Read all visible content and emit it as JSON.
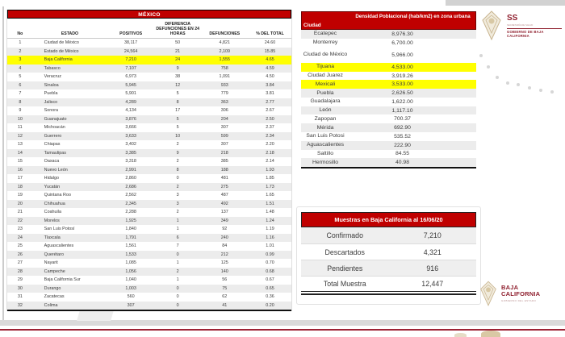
{
  "mexico_table": {
    "title": "MÉXICO",
    "columns": {
      "no": "No",
      "estado": "ESTADO",
      "positivos": "POSITIVOS",
      "dif": "DIFERENCIA DEFUNCIONES EN 24 HORAS",
      "defunciones": "DEFUNCIONES",
      "pct": "% DEL TOTAL"
    },
    "rows": [
      {
        "no": "1",
        "estado": "Ciudad de México",
        "positivos": "38,117",
        "dif": "50",
        "defunciones": "4,821",
        "pct": "24.60",
        "highlight": false
      },
      {
        "no": "2",
        "estado": "Estado de México",
        "positivos": "24,564",
        "dif": "21",
        "defunciones": "2,109",
        "pct": "15.85",
        "highlight": false
      },
      {
        "no": "3",
        "estado": "Baja California",
        "positivos": "7,210",
        "dif": "24",
        "defunciones": "1,555",
        "pct": "4.65",
        "highlight": true
      },
      {
        "no": "4",
        "estado": "Tabasco",
        "positivos": "7,107",
        "dif": "9",
        "defunciones": "758",
        "pct": "4.59",
        "highlight": false
      },
      {
        "no": "5",
        "estado": "Veracruz",
        "positivos": "6,973",
        "dif": "38",
        "defunciones": "1,091",
        "pct": "4.50",
        "highlight": false
      },
      {
        "no": "6",
        "estado": "Sinaloa",
        "positivos": "5,945",
        "dif": "12",
        "defunciones": "933",
        "pct": "3.84",
        "highlight": false
      },
      {
        "no": "7",
        "estado": "Puebla",
        "positivos": "5,901",
        "dif": "5",
        "defunciones": "779",
        "pct": "3.81",
        "highlight": false
      },
      {
        "no": "8",
        "estado": "Jalisco",
        "positivos": "4,289",
        "dif": "8",
        "defunciones": "363",
        "pct": "2.77",
        "highlight": false
      },
      {
        "no": "9",
        "estado": "Sonora",
        "positivos": "4,134",
        "dif": "17",
        "defunciones": "306",
        "pct": "2.67",
        "highlight": false
      },
      {
        "no": "10",
        "estado": "Guanajuato",
        "positivos": "3,876",
        "dif": "5",
        "defunciones": "204",
        "pct": "2.50",
        "highlight": false
      },
      {
        "no": "11",
        "estado": "Michoacán",
        "positivos": "3,666",
        "dif": "5",
        "defunciones": "307",
        "pct": "2.37",
        "highlight": false
      },
      {
        "no": "12",
        "estado": "Guerrero",
        "positivos": "3,633",
        "dif": "10",
        "defunciones": "599",
        "pct": "2.34",
        "highlight": false
      },
      {
        "no": "13",
        "estado": "Chiapas",
        "positivos": "3,402",
        "dif": "2",
        "defunciones": "307",
        "pct": "2.20",
        "highlight": false
      },
      {
        "no": "14",
        "estado": "Tamaulipas",
        "positivos": "3,385",
        "dif": "9",
        "defunciones": "218",
        "pct": "2.18",
        "highlight": false
      },
      {
        "no": "15",
        "estado": "Oaxaca",
        "positivos": "3,318",
        "dif": "2",
        "defunciones": "385",
        "pct": "2.14",
        "highlight": false
      },
      {
        "no": "16",
        "estado": "Nuevo León",
        "positivos": "2,991",
        "dif": "8",
        "defunciones": "188",
        "pct": "1.93",
        "highlight": false
      },
      {
        "no": "17",
        "estado": "Hidalgo",
        "positivos": "2,860",
        "dif": "0",
        "defunciones": "481",
        "pct": "1.85",
        "highlight": false
      },
      {
        "no": "18",
        "estado": "Yucatán",
        "positivos": "2,686",
        "dif": "2",
        "defunciones": "275",
        "pct": "1.73",
        "highlight": false
      },
      {
        "no": "19",
        "estado": "Quintana Roo",
        "positivos": "2,562",
        "dif": "3",
        "defunciones": "487",
        "pct": "1.65",
        "highlight": false
      },
      {
        "no": "20",
        "estado": "Chihuahua",
        "positivos": "2,345",
        "dif": "3",
        "defunciones": "492",
        "pct": "1.51",
        "highlight": false
      },
      {
        "no": "21",
        "estado": "Coahuila",
        "positivos": "2,288",
        "dif": "2",
        "defunciones": "137",
        "pct": "1.48",
        "highlight": false
      },
      {
        "no": "22",
        "estado": "Morelos",
        "positivos": "1,925",
        "dif": "1",
        "defunciones": "349",
        "pct": "1.24",
        "highlight": false
      },
      {
        "no": "23",
        "estado": "San Luis Potosí",
        "positivos": "1,840",
        "dif": "1",
        "defunciones": "92",
        "pct": "1.19",
        "highlight": false
      },
      {
        "no": "24",
        "estado": "Tlaxcala",
        "positivos": "1,791",
        "dif": "6",
        "defunciones": "240",
        "pct": "1.16",
        "highlight": false
      },
      {
        "no": "25",
        "estado": "Aguascalientes",
        "positivos": "1,561",
        "dif": "7",
        "defunciones": "84",
        "pct": "1.01",
        "highlight": false
      },
      {
        "no": "26",
        "estado": "Querétaro",
        "positivos": "1,533",
        "dif": "0",
        "defunciones": "212",
        "pct": "0.99",
        "highlight": false
      },
      {
        "no": "27",
        "estado": "Nayarit",
        "positivos": "1,085",
        "dif": "1",
        "defunciones": "125",
        "pct": "0.70",
        "highlight": false
      },
      {
        "no": "28",
        "estado": "Campeche",
        "positivos": "1,056",
        "dif": "2",
        "defunciones": "140",
        "pct": "0.68",
        "highlight": false
      },
      {
        "no": "29",
        "estado": "Baja California Sur",
        "positivos": "1,040",
        "dif": "1",
        "defunciones": "56",
        "pct": "0.67",
        "highlight": false
      },
      {
        "no": "30",
        "estado": "Durango",
        "positivos": "1,003",
        "dif": "0",
        "defunciones": "75",
        "pct": "0.65",
        "highlight": false
      },
      {
        "no": "31",
        "estado": "Zacatecas",
        "positivos": "560",
        "dif": "0",
        "defunciones": "62",
        "pct": "0.36",
        "highlight": false
      },
      {
        "no": "32",
        "estado": "Colima",
        "positivos": "307",
        "dif": "0",
        "defunciones": "41",
        "pct": "0.20",
        "highlight": false
      }
    ]
  },
  "density_table": {
    "header_city": "Ciudad",
    "header_value": "Densidad Poblacional (hab/km2) en zona urbana",
    "rows": [
      {
        "city": "Ecatepec",
        "value": "8,976.30",
        "shade": "gray",
        "tall": false
      },
      {
        "city": "Monterrey",
        "value": "6,700.00",
        "shade": "white",
        "tall": false
      },
      {
        "city": "Ciudad de México",
        "value": "5,966.00",
        "shade": "white",
        "tall": true
      },
      {
        "city": "Tijuana",
        "value": "4,533.00",
        "shade": "yellow",
        "tall": false
      },
      {
        "city": "Ciudad Juarez",
        "value": "3,919.26",
        "shade": "white",
        "tall": false
      },
      {
        "city": "Mexicali",
        "value": "3,533.00",
        "shade": "yellow",
        "tall": false
      },
      {
        "city": "Puebla",
        "value": "2,626.50",
        "shade": "gray",
        "tall": false
      },
      {
        "city": "Guadalajara",
        "value": "1,622.00",
        "shade": "white",
        "tall": false
      },
      {
        "city": "León",
        "value": "1,117.10",
        "shade": "gray",
        "tall": false
      },
      {
        "city": "Zapopan",
        "value": "700.37",
        "shade": "white",
        "tall": false
      },
      {
        "city": "Mérida",
        "value": "692.90",
        "shade": "gray",
        "tall": false
      },
      {
        "city": "San Luis Potosi",
        "value": "535.52",
        "shade": "white",
        "tall": false
      },
      {
        "city": "Aguascalientes",
        "value": "222.90",
        "shade": "gray",
        "tall": false
      },
      {
        "city": "Saltillo",
        "value": "84.55",
        "shade": "white",
        "tall": false
      },
      {
        "city": "Hermosillo",
        "value": "40.98",
        "shade": "gray",
        "tall": false
      }
    ]
  },
  "muestras": {
    "title": "Muestras en Baja California al 16/06/20",
    "rows": [
      {
        "label": "Confirmado",
        "value": "7,210",
        "shade": "gray"
      },
      {
        "label": "Descartados",
        "value": "4,321",
        "shade": "white"
      },
      {
        "label": "Pendientes",
        "value": "916",
        "shade": "gray"
      },
      {
        "label": "Total Muestra",
        "value": "12,447",
        "shade": "white"
      }
    ]
  },
  "logos": {
    "ss": {
      "abbr": "SS",
      "sub": "SECRETARÍA DE SALUD",
      "org": "GOBIERNO DE BAJA CALIFORNIA"
    },
    "bc": {
      "line1": "BAJA",
      "line2": "CALIFORNIA",
      "sub": "GOBIERNO DEL ESTADO"
    }
  },
  "colors": {
    "accent_red": "#C00000",
    "highlight_yellow": "#FFFF00",
    "row_gray": "#ECECEC",
    "logo_red": "#8F1F2E"
  }
}
